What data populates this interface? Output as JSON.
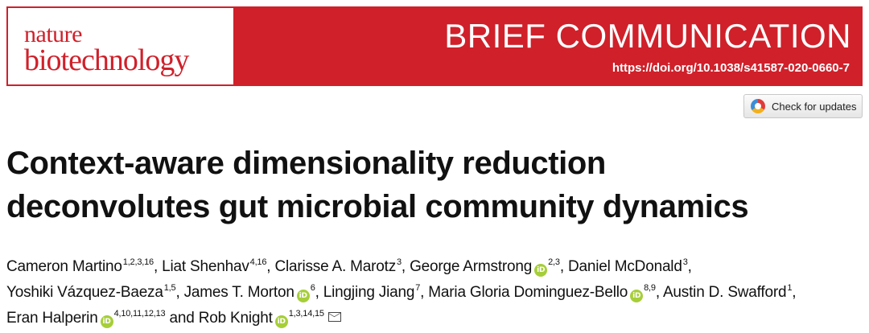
{
  "header": {
    "journal_line1": "nature",
    "journal_line2": "biotechnology",
    "article_type": "BRIEF COMMUNICATION",
    "doi": "https://doi.org/10.1038/s41587-020-0660-7",
    "brand_color": "#d0202a"
  },
  "check_updates": {
    "label": "Check for updates",
    "icon": "crossmark-icon"
  },
  "article": {
    "title_line1": "Context-aware dimensionality reduction",
    "title_line2": "deconvolutes gut microbial community dynamics"
  },
  "authors": [
    {
      "name": "Cameron Martino",
      "aff": "1,2,3,16",
      "orcid": false,
      "sep": ", "
    },
    {
      "name": "Liat Shenhav",
      "aff": "4,16",
      "orcid": false,
      "sep": ", "
    },
    {
      "name": "Clarisse A. Marotz",
      "aff": "3",
      "orcid": false,
      "sep": ", "
    },
    {
      "name": "George Armstrong",
      "aff": "2,3",
      "orcid": true,
      "sep": ", "
    },
    {
      "name": "Daniel McDonald",
      "aff": "3",
      "orcid": false,
      "sep": ", "
    },
    {
      "name": "Yoshiki Vázquez-Baeza",
      "aff": "1,5",
      "orcid": false,
      "sep": ", "
    },
    {
      "name": "James T. Morton",
      "aff": "6",
      "orcid": true,
      "sep": ", "
    },
    {
      "name": "Lingjing Jiang",
      "aff": "7",
      "orcid": false,
      "sep": ", "
    },
    {
      "name": "Maria Gloria Dominguez-Bello",
      "aff": "8,9",
      "orcid": true,
      "sep": ", "
    },
    {
      "name": "Austin D. Swafford",
      "aff": "1",
      "orcid": false,
      "sep": ", "
    },
    {
      "name": "Eran Halperin",
      "aff": "4,10,11,12,13",
      "orcid": true,
      "sep": " and "
    },
    {
      "name": "Rob Knight",
      "aff": "1,3,14,15",
      "orcid": true,
      "sep": "",
      "email": true
    }
  ],
  "orcid_glyph": "iD",
  "orcid_color": "#a6ce39"
}
